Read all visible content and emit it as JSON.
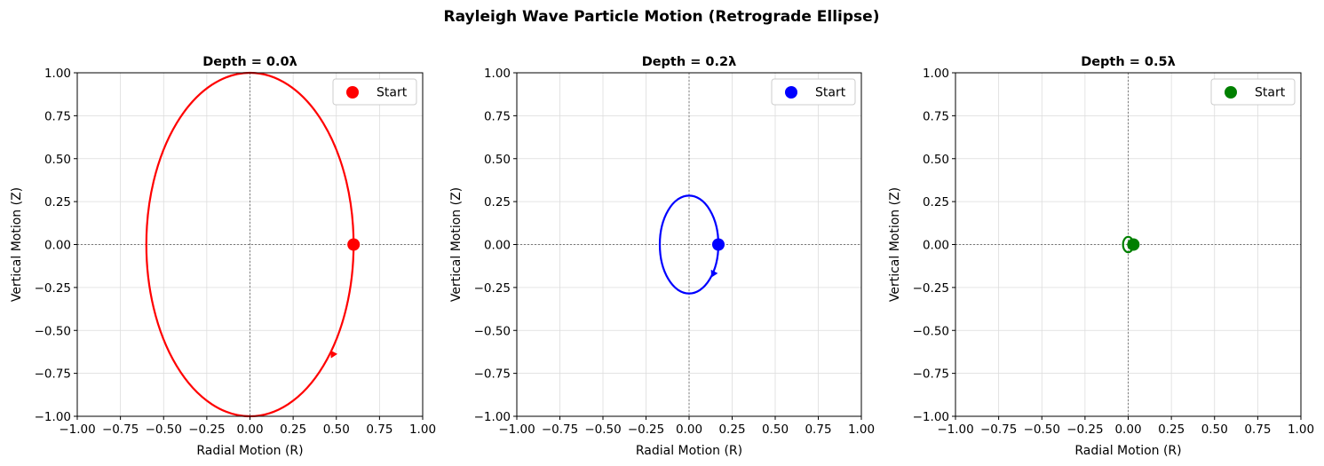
{
  "figure": {
    "title": "Rayleigh Wave Particle Motion (Retrograde Ellipse)"
  },
  "chart_data": [
    {
      "type": "line",
      "title": "Depth = 0.0λ",
      "xlabel": "Radial Motion (R)",
      "ylabel": "Vertical Motion (Z)",
      "xlim": [
        -1.0,
        1.0
      ],
      "ylim": [
        -1.0,
        1.0
      ],
      "xticks": [
        "−1.00",
        "−0.75",
        "−0.50",
        "−0.25",
        "0.00",
        "0.25",
        "0.50",
        "0.75",
        "1.00"
      ],
      "yticks": [
        "−1.00",
        "−0.75",
        "−0.50",
        "−0.25",
        "0.00",
        "0.25",
        "0.50",
        "0.75",
        "1.00"
      ],
      "grid": true,
      "color": "#ff0000",
      "ellipse": {
        "center": [
          0.0,
          0.0
        ],
        "radial_amplitude": 0.6,
        "vertical_amplitude": 1.0
      },
      "start_point": [
        0.6,
        0.0
      ],
      "arrow_point": [
        0.47,
        -0.66
      ],
      "legend": {
        "label": "Start",
        "position": "top-right"
      }
    },
    {
      "type": "line",
      "title": "Depth = 0.2λ",
      "xlabel": "Radial Motion (R)",
      "ylabel": "Vertical Motion (Z)",
      "xlim": [
        -1.0,
        1.0
      ],
      "ylim": [
        -1.0,
        1.0
      ],
      "xticks": [
        "−1.00",
        "−0.75",
        "−0.50",
        "−0.25",
        "0.00",
        "0.25",
        "0.50",
        "0.75",
        "1.00"
      ],
      "yticks": [
        "−1.00",
        "−0.75",
        "−0.50",
        "−0.25",
        "0.00",
        "0.25",
        "0.50",
        "0.75",
        "1.00"
      ],
      "grid": true,
      "color": "#0000ff",
      "ellipse": {
        "center": [
          0.0,
          0.0
        ],
        "radial_amplitude": 0.17,
        "vertical_amplitude": 0.285
      },
      "start_point": [
        0.17,
        0.0
      ],
      "arrow_point": [
        0.13,
        -0.19
      ],
      "legend": {
        "label": "Start",
        "position": "top-right"
      }
    },
    {
      "type": "line",
      "title": "Depth = 0.5λ",
      "xlabel": "Radial Motion (R)",
      "ylabel": "Vertical Motion (Z)",
      "xlim": [
        -1.0,
        1.0
      ],
      "ylim": [
        -1.0,
        1.0
      ],
      "xticks": [
        "−1.00",
        "−0.75",
        "−0.50",
        "−0.25",
        "0.00",
        "0.25",
        "0.50",
        "0.75",
        "1.00"
      ],
      "yticks": [
        "−1.00",
        "−0.75",
        "−0.50",
        "−0.25",
        "0.00",
        "0.25",
        "0.50",
        "0.75",
        "1.00"
      ],
      "grid": true,
      "color": "#008000",
      "ellipse": {
        "center": [
          0.0,
          0.0
        ],
        "radial_amplitude": 0.03,
        "vertical_amplitude": 0.045
      },
      "start_point": [
        0.03,
        0.0
      ],
      "arrow_point": [
        0.02,
        -0.03
      ],
      "legend": {
        "label": "Start",
        "position": "top-right"
      }
    }
  ]
}
